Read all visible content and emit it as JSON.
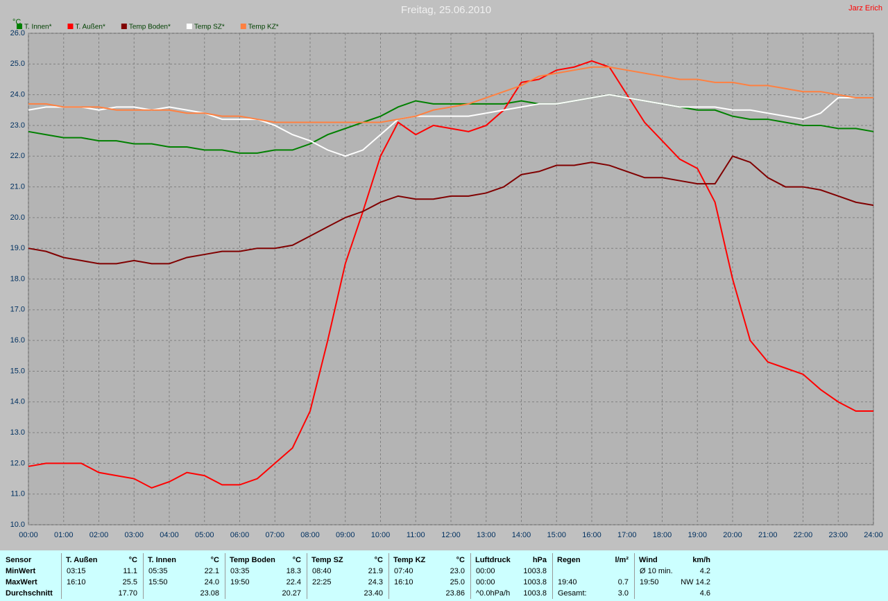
{
  "chart_data": {
    "type": "line",
    "title": "Freitag, 25.06.2010",
    "author": "Jarz Erich",
    "y_label": "°C",
    "x": [
      0,
      0.5,
      1,
      1.5,
      2,
      2.5,
      3,
      3.5,
      4,
      4.5,
      5,
      5.5,
      6,
      6.5,
      7,
      7.5,
      8,
      8.5,
      9,
      9.5,
      10,
      10.5,
      11,
      11.5,
      12,
      12.5,
      13,
      13.5,
      14,
      14.5,
      15,
      15.5,
      16,
      16.5,
      17,
      17.5,
      18,
      18.5,
      19,
      19.5,
      20,
      20.5,
      21,
      21.5,
      22,
      22.5,
      23,
      23.5,
      24
    ],
    "xlim": [
      0,
      24
    ],
    "xticks": [
      {
        "value": 0,
        "label": "00:00"
      },
      {
        "value": 1,
        "label": "01:00"
      },
      {
        "value": 2,
        "label": "02:00"
      },
      {
        "value": 3,
        "label": "03:00"
      },
      {
        "value": 4,
        "label": "04:00"
      },
      {
        "value": 5,
        "label": "05:00"
      },
      {
        "value": 6,
        "label": "06:00"
      },
      {
        "value": 7,
        "label": "07:00"
      },
      {
        "value": 8,
        "label": "08:00"
      },
      {
        "value": 9,
        "label": "09:00"
      },
      {
        "value": 10,
        "label": "10:00"
      },
      {
        "value": 11,
        "label": "11:00"
      },
      {
        "value": 12,
        "label": "12:00"
      },
      {
        "value": 13,
        "label": "13:00"
      },
      {
        "value": 14,
        "label": "14:00"
      },
      {
        "value": 15,
        "label": "15:00"
      },
      {
        "value": 16,
        "label": "16:00"
      },
      {
        "value": 17,
        "label": "17:00"
      },
      {
        "value": 18,
        "label": "18:00"
      },
      {
        "value": 19,
        "label": "19:00"
      },
      {
        "value": 20,
        "label": "20:00"
      },
      {
        "value": 21,
        "label": "21:00"
      },
      {
        "value": 22,
        "label": "22:00"
      },
      {
        "value": 23,
        "label": "23:00"
      },
      {
        "value": 24,
        "label": "24:00"
      }
    ],
    "ylim": [
      10,
      26
    ],
    "yticks": [
      {
        "value": 10,
        "label": "10.0"
      },
      {
        "value": 11,
        "label": "11.0"
      },
      {
        "value": 12,
        "label": "12.0"
      },
      {
        "value": 13,
        "label": "13.0"
      },
      {
        "value": 14,
        "label": "14.0"
      },
      {
        "value": 15,
        "label": "15.0"
      },
      {
        "value": 16,
        "label": "16.0"
      },
      {
        "value": 17,
        "label": "17.0"
      },
      {
        "value": 18,
        "label": "18.0"
      },
      {
        "value": 19,
        "label": "19.0"
      },
      {
        "value": 20,
        "label": "20.0"
      },
      {
        "value": 21,
        "label": "21.0"
      },
      {
        "value": 22,
        "label": "22.0"
      },
      {
        "value": 23,
        "label": "23.0"
      },
      {
        "value": 24,
        "label": "24.0"
      },
      {
        "value": 25,
        "label": "25.0"
      },
      {
        "value": 26,
        "label": "26.0"
      }
    ],
    "grid": true,
    "series": [
      {
        "name": "T. Innen*",
        "color": "#008000",
        "values": [
          22.8,
          22.7,
          22.6,
          22.6,
          22.5,
          22.5,
          22.4,
          22.4,
          22.3,
          22.3,
          22.2,
          22.2,
          22.1,
          22.1,
          22.2,
          22.2,
          22.4,
          22.7,
          22.9,
          23.1,
          23.3,
          23.6,
          23.8,
          23.7,
          23.7,
          23.7,
          23.7,
          23.7,
          23.8,
          23.7,
          23.7,
          23.8,
          23.9,
          24.0,
          23.9,
          23.8,
          23.7,
          23.6,
          23.5,
          23.5,
          23.3,
          23.2,
          23.2,
          23.1,
          23.0,
          23.0,
          22.9,
          22.9,
          22.8
        ]
      },
      {
        "name": "T. Außen*",
        "color": "#ff0000",
        "values": [
          11.9,
          12.0,
          12.0,
          12.0,
          11.7,
          11.6,
          11.5,
          11.2,
          11.4,
          11.7,
          11.6,
          11.3,
          11.3,
          11.5,
          12.0,
          12.5,
          13.7,
          16.0,
          18.5,
          20.2,
          22.0,
          23.1,
          22.7,
          23.0,
          22.9,
          22.8,
          23.0,
          23.5,
          24.4,
          24.5,
          24.8,
          24.9,
          25.1,
          24.9,
          24.0,
          23.1,
          22.5,
          21.9,
          21.6,
          20.5,
          18.0,
          16.0,
          15.3,
          15.1,
          14.9,
          14.4,
          14.0,
          13.7,
          13.7
        ]
      },
      {
        "name": "Temp Boden*",
        "color": "#800000",
        "values": [
          19.0,
          18.9,
          18.7,
          18.6,
          18.5,
          18.5,
          18.6,
          18.5,
          18.5,
          18.7,
          18.8,
          18.9,
          18.9,
          19.0,
          19.0,
          19.1,
          19.4,
          19.7,
          20.0,
          20.2,
          20.5,
          20.7,
          20.6,
          20.6,
          20.7,
          20.7,
          20.8,
          21.0,
          21.4,
          21.5,
          21.7,
          21.7,
          21.8,
          21.7,
          21.5,
          21.3,
          21.3,
          21.2,
          21.1,
          21.1,
          22.0,
          21.8,
          21.3,
          21.0,
          21.0,
          20.9,
          20.7,
          20.5,
          20.4
        ]
      },
      {
        "name": "Temp SZ*",
        "color": "#ffffff",
        "values": [
          23.5,
          23.6,
          23.6,
          23.6,
          23.5,
          23.6,
          23.6,
          23.5,
          23.6,
          23.5,
          23.4,
          23.2,
          23.2,
          23.2,
          23.0,
          22.7,
          22.5,
          22.2,
          22.0,
          22.2,
          22.7,
          23.2,
          23.3,
          23.3,
          23.3,
          23.3,
          23.4,
          23.5,
          23.6,
          23.7,
          23.7,
          23.8,
          23.9,
          24.0,
          23.9,
          23.8,
          23.7,
          23.6,
          23.6,
          23.6,
          23.5,
          23.5,
          23.4,
          23.3,
          23.2,
          23.4,
          23.9,
          23.9,
          23.9
        ]
      },
      {
        "name": "Temp KZ*",
        "color": "#ff8040",
        "values": [
          23.7,
          23.7,
          23.6,
          23.6,
          23.6,
          23.5,
          23.5,
          23.5,
          23.5,
          23.4,
          23.4,
          23.3,
          23.3,
          23.2,
          23.1,
          23.1,
          23.1,
          23.1,
          23.1,
          23.1,
          23.1,
          23.2,
          23.3,
          23.5,
          23.6,
          23.7,
          23.9,
          24.1,
          24.3,
          24.6,
          24.7,
          24.8,
          24.9,
          24.9,
          24.8,
          24.7,
          24.6,
          24.5,
          24.5,
          24.4,
          24.4,
          24.3,
          24.3,
          24.2,
          24.1,
          24.1,
          24.0,
          23.9,
          23.9
        ]
      }
    ]
  },
  "table": {
    "row_labels": [
      "Sensor",
      "MinWert",
      "MaxWert",
      "Durchschnitt"
    ],
    "blocks": [
      {
        "header": [
          "T. Außen",
          "°C"
        ],
        "rows": [
          [
            "03:15",
            "11.1"
          ],
          [
            "16:10",
            "25.5"
          ],
          [
            null,
            "17.70"
          ]
        ]
      },
      {
        "header": [
          "T. Innen",
          "°C"
        ],
        "rows": [
          [
            "05:35",
            "22.1"
          ],
          [
            "15:50",
            "24.0"
          ],
          [
            null,
            "23.08"
          ]
        ]
      },
      {
        "header": [
          "Temp Boden",
          "°C"
        ],
        "rows": [
          [
            "03:35",
            "18.3"
          ],
          [
            "19:50",
            "22.4"
          ],
          [
            null,
            "20.27"
          ]
        ]
      },
      {
        "header": [
          "Temp SZ",
          "°C"
        ],
        "rows": [
          [
            "08:40",
            "21.9"
          ],
          [
            "22:25",
            "24.3"
          ],
          [
            null,
            "23.40"
          ]
        ]
      },
      {
        "header": [
          "Temp KZ",
          "°C"
        ],
        "rows": [
          [
            "07:40",
            "23.0"
          ],
          [
            "16:10",
            "25.0"
          ],
          [
            null,
            "23.86"
          ]
        ]
      },
      {
        "header": [
          "Luftdruck",
          "hPa"
        ],
        "rows": [
          [
            "00:00",
            "1003.8"
          ],
          [
            "00:00",
            "1003.8"
          ],
          [
            "^0.0hPa/h",
            "1003.8"
          ]
        ]
      },
      {
        "header": [
          "Regen",
          "l/m²"
        ],
        "rows": [
          [
            null,
            null
          ],
          [
            "19:40",
            "0.7"
          ],
          [
            "Gesamt:",
            "3.0"
          ]
        ]
      },
      {
        "header": [
          "Wind",
          "km/h"
        ],
        "rows": [
          [
            "Ø 10 min.",
            "4.2"
          ],
          [
            "19:50",
            "NW 14.2"
          ],
          [
            null,
            "4.6"
          ]
        ]
      }
    ]
  }
}
